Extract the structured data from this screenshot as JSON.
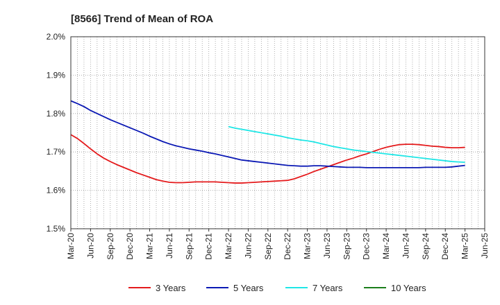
{
  "chart_data": {
    "type": "line",
    "title": "[8566]  Trend of Mean of ROA",
    "xlabel": "",
    "ylabel": "",
    "ylim": [
      1.5,
      2.0
    ],
    "y_ticks": [
      "1.5%",
      "1.6%",
      "1.7%",
      "1.8%",
      "1.9%",
      "2.0%"
    ],
    "x_ticks": [
      "Mar-20",
      "Jun-20",
      "Sep-20",
      "Dec-20",
      "Mar-21",
      "Jun-21",
      "Sep-21",
      "Dec-21",
      "Mar-22",
      "Jun-22",
      "Sep-22",
      "Dec-22",
      "Mar-23",
      "Jun-23",
      "Sep-23",
      "Dec-23",
      "Mar-24",
      "Jun-24",
      "Sep-24",
      "Dec-24",
      "Mar-25",
      "Jun-25"
    ],
    "grid": true,
    "legend_position": "bottom",
    "series": [
      {
        "name": "3 Years",
        "color": "#e41a1c",
        "x": [
          "Mar-20",
          "Apr-20",
          "May-20",
          "Jun-20",
          "Jul-20",
          "Aug-20",
          "Sep-20",
          "Oct-20",
          "Nov-20",
          "Dec-20",
          "Jan-21",
          "Feb-21",
          "Mar-21",
          "Apr-21",
          "May-21",
          "Jun-21",
          "Jul-21",
          "Aug-21",
          "Sep-21",
          "Oct-21",
          "Nov-21",
          "Dec-21",
          "Jan-22",
          "Feb-22",
          "Mar-22",
          "Apr-22",
          "May-22",
          "Jun-22",
          "Jul-22",
          "Aug-22",
          "Sep-22",
          "Oct-22",
          "Nov-22",
          "Dec-22",
          "Jan-23",
          "Feb-23",
          "Mar-23",
          "Apr-23",
          "May-23",
          "Jun-23",
          "Jul-23",
          "Aug-23",
          "Sep-23",
          "Oct-23",
          "Nov-23",
          "Dec-23",
          "Jan-24",
          "Feb-24",
          "Mar-24",
          "Apr-24",
          "May-24",
          "Jun-24",
          "Jul-24",
          "Aug-24",
          "Sep-24",
          "Oct-24",
          "Nov-24",
          "Dec-24",
          "Jan-25",
          "Feb-25",
          "Mar-25"
        ],
        "values": [
          1.745,
          1.735,
          1.722,
          1.708,
          1.695,
          1.684,
          1.675,
          1.667,
          1.66,
          1.653,
          1.646,
          1.64,
          1.634,
          1.628,
          1.624,
          1.621,
          1.62,
          1.62,
          1.621,
          1.622,
          1.622,
          1.622,
          1.622,
          1.621,
          1.62,
          1.619,
          1.619,
          1.62,
          1.621,
          1.622,
          1.623,
          1.624,
          1.625,
          1.626,
          1.63,
          1.636,
          1.642,
          1.649,
          1.655,
          1.661,
          1.667,
          1.673,
          1.679,
          1.684,
          1.69,
          1.695,
          1.701,
          1.707,
          1.712,
          1.716,
          1.719,
          1.72,
          1.72,
          1.719,
          1.717,
          1.715,
          1.714,
          1.712,
          1.711,
          1.711,
          1.712
        ]
      },
      {
        "name": "5 Years",
        "color": "#0a18b4",
        "x": [
          "Mar-20",
          "Apr-20",
          "May-20",
          "Jun-20",
          "Jul-20",
          "Aug-20",
          "Sep-20",
          "Oct-20",
          "Nov-20",
          "Dec-20",
          "Jan-21",
          "Feb-21",
          "Mar-21",
          "Apr-21",
          "May-21",
          "Jun-21",
          "Jul-21",
          "Aug-21",
          "Sep-21",
          "Oct-21",
          "Nov-21",
          "Dec-21",
          "Jan-22",
          "Feb-22",
          "Mar-22",
          "Apr-22",
          "May-22",
          "Jun-22",
          "Jul-22",
          "Aug-22",
          "Sep-22",
          "Oct-22",
          "Nov-22",
          "Dec-22",
          "Jan-23",
          "Feb-23",
          "Mar-23",
          "Apr-23",
          "May-23",
          "Jun-23",
          "Jul-23",
          "Aug-23",
          "Sep-23",
          "Oct-23",
          "Nov-23",
          "Dec-23",
          "Jan-24",
          "Feb-24",
          "Mar-24",
          "Apr-24",
          "May-24",
          "Jun-24",
          "Jul-24",
          "Aug-24",
          "Sep-24",
          "Oct-24",
          "Nov-24",
          "Dec-24",
          "Jan-25",
          "Feb-25",
          "Mar-25"
        ],
        "values": [
          1.833,
          1.826,
          1.818,
          1.808,
          1.8,
          1.792,
          1.784,
          1.777,
          1.77,
          1.763,
          1.756,
          1.749,
          1.741,
          1.734,
          1.727,
          1.721,
          1.716,
          1.712,
          1.708,
          1.705,
          1.702,
          1.698,
          1.695,
          1.691,
          1.687,
          1.683,
          1.679,
          1.677,
          1.675,
          1.673,
          1.671,
          1.669,
          1.667,
          1.665,
          1.664,
          1.663,
          1.663,
          1.664,
          1.664,
          1.663,
          1.662,
          1.661,
          1.66,
          1.66,
          1.66,
          1.659,
          1.659,
          1.659,
          1.659,
          1.659,
          1.659,
          1.659,
          1.659,
          1.659,
          1.66,
          1.66,
          1.66,
          1.66,
          1.661,
          1.663,
          1.665
        ]
      },
      {
        "name": "7 Years",
        "color": "#1ee6e6",
        "x": [
          "Mar-22",
          "Apr-22",
          "May-22",
          "Jun-22",
          "Jul-22",
          "Aug-22",
          "Sep-22",
          "Oct-22",
          "Nov-22",
          "Dec-22",
          "Jan-23",
          "Feb-23",
          "Mar-23",
          "Apr-23",
          "May-23",
          "Jun-23",
          "Jul-23",
          "Aug-23",
          "Sep-23",
          "Oct-23",
          "Nov-23",
          "Dec-23",
          "Jan-24",
          "Feb-24",
          "Mar-24",
          "Apr-24",
          "May-24",
          "Jun-24",
          "Jul-24",
          "Aug-24",
          "Sep-24",
          "Oct-24",
          "Nov-24",
          "Dec-24",
          "Jan-25",
          "Feb-25",
          "Mar-25"
        ],
        "values": [
          1.766,
          1.762,
          1.759,
          1.756,
          1.753,
          1.75,
          1.747,
          1.744,
          1.741,
          1.737,
          1.734,
          1.731,
          1.729,
          1.726,
          1.722,
          1.718,
          1.714,
          1.711,
          1.708,
          1.705,
          1.703,
          1.701,
          1.699,
          1.697,
          1.695,
          1.693,
          1.691,
          1.689,
          1.687,
          1.685,
          1.683,
          1.681,
          1.679,
          1.677,
          1.675,
          1.674,
          1.673
        ]
      },
      {
        "name": "10 Years",
        "color": "#1a7d1a",
        "x": [],
        "values": []
      }
    ]
  }
}
